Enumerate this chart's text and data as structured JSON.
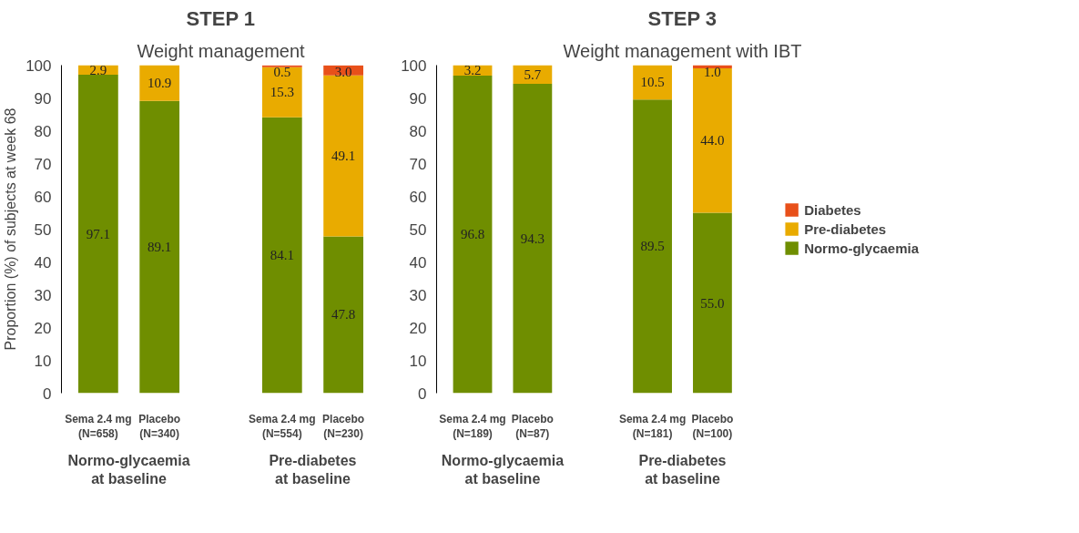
{
  "chart_data": [
    {
      "type": "bar",
      "stacked": true,
      "title": "STEP 1",
      "subtitle": "Weight management",
      "ylabel": "Proportion (%) of subjects at week 68",
      "categories": [
        "Sema 2.4 mg\n(N=658)",
        "Placebo\n(N=340)",
        null,
        "Sema 2.4 mg\n(N=554)",
        "Placebo\n(N=230)"
      ],
      "series": [
        {
          "color": "#6f8e00",
          "values": [
            97.1,
            89.1,
            null,
            84.1,
            47.8
          ],
          "value_labels": [
            "97.1",
            "89.1",
            null,
            "84.1",
            "47.8"
          ]
        },
        {
          "color": "#e9ab00",
          "values": [
            2.9,
            10.9,
            null,
            15.3,
            49.1
          ],
          "value_labels": [
            "2.9",
            "10.9",
            null,
            "15.3",
            "49.1"
          ]
        },
        {
          "color": "#e8501a",
          "values": [
            null,
            null,
            null,
            0.5,
            3.0
          ],
          "value_labels": [
            null,
            null,
            null,
            "0.5",
            "3.0"
          ]
        }
      ],
      "ylim": [
        0,
        100
      ],
      "yticks": [
        0,
        10,
        20,
        30,
        40,
        50,
        60,
        70,
        80,
        90,
        100
      ],
      "grid": false,
      "legend": false,
      "annotations": [
        "Normo-glycaemia\nat baseline",
        "Pre-diabetes\nat baseline"
      ]
    },
    {
      "type": "bar",
      "stacked": true,
      "title": "STEP 3",
      "subtitle": "Weight management with IBT",
      "categories": [
        "Sema 2.4 mg\n(N=189)",
        "Placebo\n(N=87)",
        null,
        "Sema 2.4 mg\n(N=181)",
        "Placebo\n(N=100)"
      ],
      "series": [
        {
          "name": "Normo-glycaemia",
          "color": "#6f8e00",
          "values": [
            96.8,
            94.3,
            null,
            89.5,
            55.0
          ],
          "value_labels": [
            "96.8",
            "94.3",
            null,
            "89.5",
            "55.0"
          ]
        },
        {
          "name": "Pre-diabetes",
          "color": "#e9ab00",
          "values": [
            3.2,
            5.7,
            null,
            10.5,
            44.0
          ],
          "value_labels": [
            "3.2",
            "5.7",
            null,
            "10.5",
            "44.0"
          ]
        },
        {
          "name": "Diabetes",
          "color": "#e8501a",
          "values": [
            null,
            null,
            null,
            null,
            1.0
          ],
          "value_labels": [
            null,
            null,
            null,
            null,
            "1.0"
          ]
        }
      ],
      "ylim": [
        0,
        100
      ],
      "yticks": [
        0,
        10,
        20,
        30,
        40,
        50,
        60,
        70,
        80,
        90,
        100
      ],
      "grid": false,
      "legend": "right",
      "annotations": [
        "Normo-glycaemia\nat baseline",
        "Pre-diabetes\nat baseline"
      ]
    }
  ]
}
